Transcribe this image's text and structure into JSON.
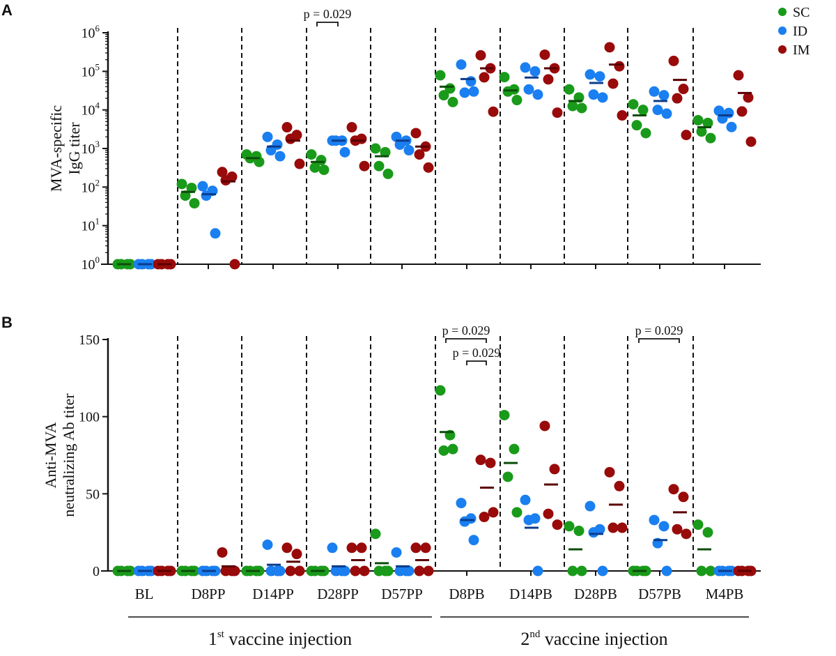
{
  "panel_labels": [
    "A",
    "B"
  ],
  "legend": [
    {
      "label": "SC",
      "color": "#1a9a1a"
    },
    {
      "label": "ID",
      "color": "#1a7ff0"
    },
    {
      "label": "IM",
      "color": "#990a0a"
    }
  ],
  "groups": {
    "first": "1st vaccine injection",
    "first_num": "1",
    "first_sup": "st",
    "first_text": " vaccine injection",
    "second_num": "2",
    "second_sup": "nd",
    "second_text": " vaccine injection"
  },
  "chart_data": [
    {
      "type": "scatter",
      "panel": "A",
      "ylabel_lines": [
        "MVA-specific",
        "IgG titer"
      ],
      "yscale": "log",
      "ylim": [
        1,
        1000000
      ],
      "yticks": [
        "10^0",
        "10^1",
        "10^2",
        "10^3",
        "10^4",
        "10^5",
        "10^6"
      ],
      "categories": [
        "BL",
        "D8PP",
        "D14PP",
        "D28PP",
        "D57PP",
        "D8PB",
        "D14PB",
        "D28PB",
        "D57PB",
        "M4PB"
      ],
      "dashed_separators": true,
      "annotations": [
        {
          "text": "p = 0.029",
          "category": "D28PP",
          "from": "SC",
          "to": "ID"
        }
      ],
      "series": [
        {
          "name": "SC",
          "points": [
            [
              1,
              1,
              1,
              1
            ],
            [
              120,
              95,
              60,
              38
            ],
            [
              700,
              630,
              560,
              450
            ],
            [
              700,
              500,
              320,
              280
            ],
            [
              1000,
              800,
              350,
              220
            ],
            [
              79000,
              36000,
              24000,
              16000
            ],
            [
              71000,
              34000,
              30000,
              18000
            ],
            [
              34000,
              21000,
              12600,
              11200
            ],
            [
              14000,
              10000,
              4000,
              2500
            ],
            [
              5400,
              4600,
              2750,
              1860
            ]
          ],
          "means": [
            1,
            75,
            560,
            450,
            630,
            40000,
            32000,
            17000,
            7200,
            3550
          ]
        },
        {
          "name": "ID",
          "points": [
            [
              1,
              1,
              1,
              1
            ],
            [
              105,
              80,
              60,
              6.3
            ],
            [
              2000,
              1260,
              900,
              630
            ],
            [
              1600,
              1600,
              1600,
              800
            ],
            [
              2000,
              1600,
              1260,
              900
            ],
            [
              150000,
              55000,
              28000,
              30000
            ],
            [
              126000,
              100000,
              34000,
              25000
            ],
            [
              83000,
              74000,
              25000,
              21000
            ],
            [
              30000,
              24000,
              10000,
              8000
            ],
            [
              9500,
              8300,
              6000,
              3600
            ]
          ],
          "means": [
            1,
            65,
            1120,
            1600,
            1600,
            63000,
            69000,
            50000,
            17000,
            7200
          ]
        },
        {
          "name": "IM",
          "points": [
            [
              1,
              1,
              1,
              1
            ],
            [
              245,
              185,
              150,
              1
            ],
            [
              3550,
              2240,
              1780,
              400
            ],
            [
              3550,
              1780,
              1600,
              350
            ],
            [
              2500,
              1120,
              700,
              320
            ],
            [
              260000,
              120000,
              70000,
              9000
            ],
            [
              270000,
              120000,
              62000,
              8500
            ],
            [
              420000,
              135000,
              48000,
              7200
            ],
            [
              186000,
              35000,
              20000,
              2240
            ],
            [
              79000,
              21000,
              9100,
              1500
            ]
          ],
          "means": [
            1,
            140,
            1600,
            1600,
            1120,
            120000,
            120000,
            150000,
            60000,
            27500
          ]
        }
      ]
    },
    {
      "type": "scatter",
      "panel": "B",
      "ylabel_lines": [
        "Anti-MVA",
        "neutralizing Ab titer"
      ],
      "yscale": "linear",
      "ylim": [
        0,
        150
      ],
      "yticks": [
        "0",
        "50",
        "100",
        "150"
      ],
      "categories": [
        "BL",
        "D8PP",
        "D14PP",
        "D28PP",
        "D57PP",
        "D8PB",
        "D14PB",
        "D28PB",
        "D57PB",
        "M4PB"
      ],
      "dashed_separators": true,
      "annotations": [
        {
          "text": "p = 0.029",
          "category": "D8PB",
          "from": "SC",
          "to": "IM"
        },
        {
          "text": "p = 0.029",
          "category": "D8PB",
          "from": "ID",
          "to": "IM"
        },
        {
          "text": "p = 0.029",
          "category": "D57PB",
          "from": "SC",
          "to": "IM"
        }
      ],
      "series": [
        {
          "name": "SC",
          "points": [
            [
              0,
              0,
              0,
              0
            ],
            [
              0,
              0,
              0,
              0
            ],
            [
              0,
              0,
              0,
              0
            ],
            [
              0,
              0,
              0,
              0
            ],
            [
              24,
              0,
              0,
              0
            ],
            [
              117,
              88,
              78,
              79
            ],
            [
              101,
              79,
              61,
              38
            ],
            [
              29,
              26,
              0,
              0
            ],
            [
              0,
              0,
              0,
              0
            ],
            [
              30,
              25,
              0,
              0
            ]
          ],
          "means": [
            0,
            0,
            0,
            0,
            5,
            90,
            70,
            14,
            0,
            14
          ]
        },
        {
          "name": "ID",
          "points": [
            [
              0,
              0,
              0,
              0
            ],
            [
              0,
              0,
              0,
              0
            ],
            [
              17,
              0,
              0,
              0
            ],
            [
              15,
              0,
              0,
              0
            ],
            [
              12,
              0,
              0,
              0
            ],
            [
              44,
              34,
              32,
              20
            ],
            [
              46,
              34,
              33,
              0
            ],
            [
              42,
              27,
              25,
              0
            ],
            [
              33,
              29,
              18,
              0
            ],
            [
              0,
              0,
              0,
              0
            ]
          ],
          "means": [
            0,
            0,
            4,
            3,
            3,
            33,
            28,
            24,
            20,
            0
          ]
        },
        {
          "name": "IM",
          "points": [
            [
              0,
              0,
              0,
              0
            ],
            [
              12,
              0,
              0,
              0
            ],
            [
              15,
              11,
              0,
              0
            ],
            [
              15,
              15,
              0,
              0
            ],
            [
              15,
              15,
              0,
              0
            ],
            [
              72,
              70,
              35,
              38
            ],
            [
              94,
              66,
              37,
              30
            ],
            [
              64,
              55,
              28,
              28
            ],
            [
              53,
              48,
              27,
              24
            ],
            [
              0,
              0,
              0,
              0
            ]
          ],
          "means": [
            0,
            3,
            6,
            7,
            7,
            54,
            56,
            43,
            38,
            0
          ]
        }
      ]
    }
  ]
}
